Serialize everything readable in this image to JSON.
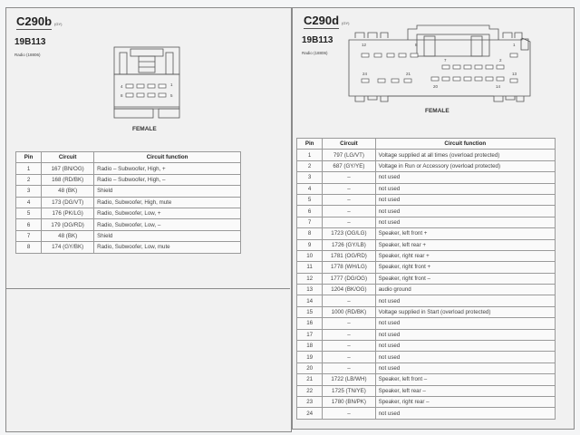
{
  "left": {
    "connector": "C290b",
    "color_tag": "(GY)",
    "part_number": "19B113",
    "component": "Radio (18806)",
    "gender": "FEMALE",
    "diagram_pin_labels": [
      "4",
      "1",
      "8",
      "5"
    ],
    "table": {
      "headers": [
        "Pin",
        "Circuit",
        "Circuit function"
      ],
      "rows": [
        [
          "1",
          "167 (BN/OG)",
          "Radio – Subwoofer, High, +"
        ],
        [
          "2",
          "168 (RD/BK)",
          "Radio – Subwoofer, High, –"
        ],
        [
          "3",
          "48 (BK)",
          "Shield"
        ],
        [
          "4",
          "173 (DG/VT)",
          "Radio, Subwoofer, High, mute"
        ],
        [
          "5",
          "176 (PK/LG)",
          "Radio, Subwoofer, Low, +"
        ],
        [
          "6",
          "179 (OG/RD)",
          "Radio, Subwoofer, Low, –"
        ],
        [
          "7",
          "48 (BK)",
          "Shield"
        ],
        [
          "8",
          "174 (GY/BK)",
          "Radio, Subwoofer, Low, mute"
        ]
      ]
    }
  },
  "right": {
    "connector": "C290d",
    "color_tag": "(GY)",
    "part_number": "19B113",
    "component": "Radio (18806)",
    "gender": "FEMALE",
    "diagram_pin_labels": [
      "12",
      "8",
      "1",
      "7",
      "2",
      "24",
      "21",
      "13",
      "20",
      "14"
    ],
    "table": {
      "headers": [
        "Pin",
        "Circuit",
        "Circuit function"
      ],
      "rows": [
        [
          "1",
          "797 (LG/VT)",
          "Voltage supplied at all times (overload protected)"
        ],
        [
          "2",
          "687 (GY/YE)",
          "Voltage in Run or Accessory (overload protected)"
        ],
        [
          "3",
          "–",
          "not used"
        ],
        [
          "4",
          "–",
          "not used"
        ],
        [
          "5",
          "–",
          "not used"
        ],
        [
          "6",
          "–",
          "not used"
        ],
        [
          "7",
          "–",
          "not used"
        ],
        [
          "8",
          "1723 (OG/LG)",
          "Speaker, left front +"
        ],
        [
          "9",
          "1726 (GY/LB)",
          "Speaker, left rear +"
        ],
        [
          "10",
          "1781 (OG/RD)",
          "Speaker, right rear +"
        ],
        [
          "11",
          "1778 (WH/LG)",
          "Speaker, right front +"
        ],
        [
          "12",
          "1777 (DG/OG)",
          "Speaker, right front –"
        ],
        [
          "13",
          "1204 (BK/OG)",
          "audio ground"
        ],
        [
          "14",
          "–",
          "not used"
        ],
        [
          "15",
          "1000 (RD/BK)",
          "Voltage supplied in Start (overload protected)"
        ],
        [
          "16",
          "–",
          "not used"
        ],
        [
          "17",
          "–",
          "not used"
        ],
        [
          "18",
          "–",
          "not used"
        ],
        [
          "19",
          "–",
          "not used"
        ],
        [
          "20",
          "–",
          "not used"
        ],
        [
          "21",
          "1722 (LB/WH)",
          "Speaker, left front –"
        ],
        [
          "22",
          "1725 (TN/YE)",
          "Speaker, left rear –"
        ],
        [
          "23",
          "1780 (BN/PK)",
          "Speaker, right rear –"
        ],
        [
          "24",
          "–",
          "not used"
        ]
      ]
    }
  }
}
